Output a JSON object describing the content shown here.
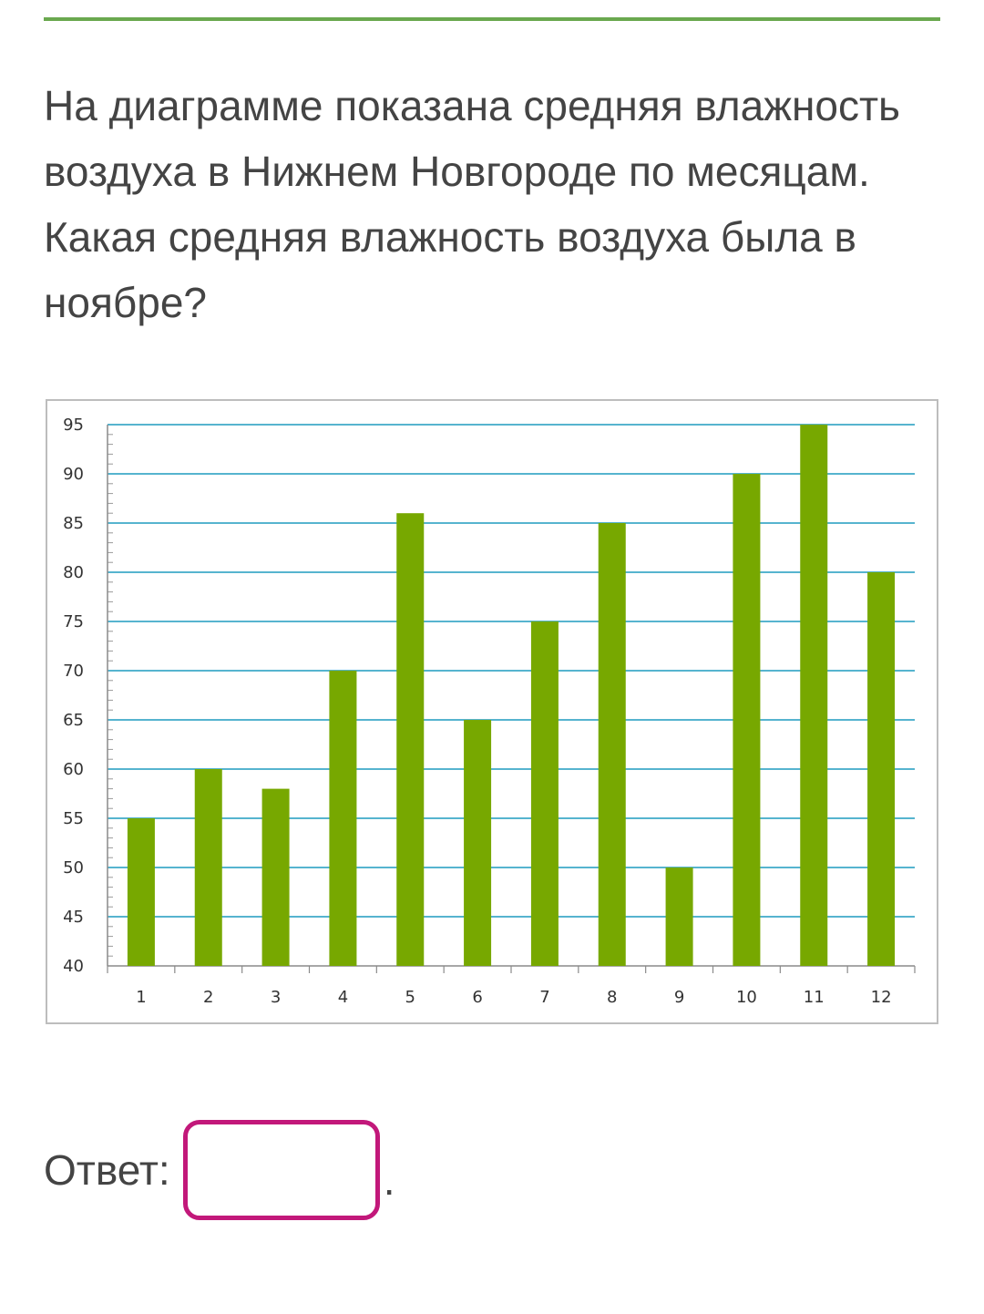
{
  "question": {
    "text": "На диаграмме показана средняя влажность воздуха в Нижнем Новгороде по месяцам. Какая средняя влажность воздуха была в ноябре?"
  },
  "answer": {
    "label": "Ответ:",
    "value": "",
    "suffix": "."
  },
  "colors": {
    "bar": "#77a800",
    "grid": "#1f9bbf",
    "rule": "#6aa84f",
    "input_border": "#c2187a"
  },
  "chart_data": {
    "type": "bar",
    "categories": [
      "1",
      "2",
      "3",
      "4",
      "5",
      "6",
      "7",
      "8",
      "9",
      "10",
      "11",
      "12"
    ],
    "values": [
      55,
      60,
      58,
      70,
      86,
      65,
      75,
      85,
      50,
      90,
      95,
      80
    ],
    "ylim": [
      40,
      95
    ],
    "yticks": [
      40,
      45,
      50,
      55,
      60,
      65,
      70,
      75,
      80,
      85,
      90,
      95
    ],
    "grid": true,
    "legend": "none",
    "title": "",
    "xlabel": "",
    "ylabel": ""
  }
}
